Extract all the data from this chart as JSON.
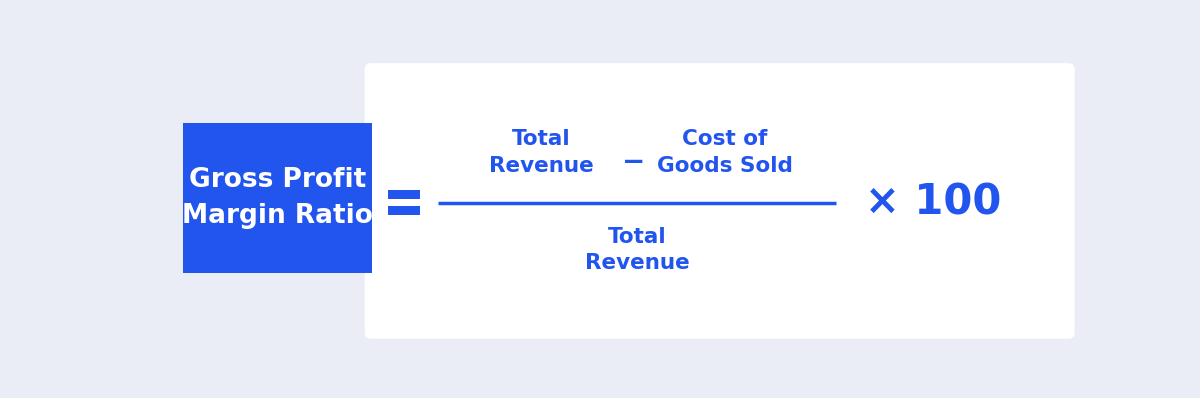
{
  "background_color": "#eaedf5",
  "white_panel_color": "#ffffff",
  "blue_box_color": "#2255ee",
  "formula_blue": "#2255ee",
  "label_text": "Gross Profit\nMargin Ratio",
  "label_text_color": "#ffffff",
  "numerator_left": "Total\nRevenue",
  "minus_sign": "−",
  "numerator_right": "Cost of\nGoods Sold",
  "denominator": "Total\nRevenue",
  "times_100": "× 100",
  "fig_width": 12.0,
  "fig_height": 3.98,
  "dpi": 100
}
